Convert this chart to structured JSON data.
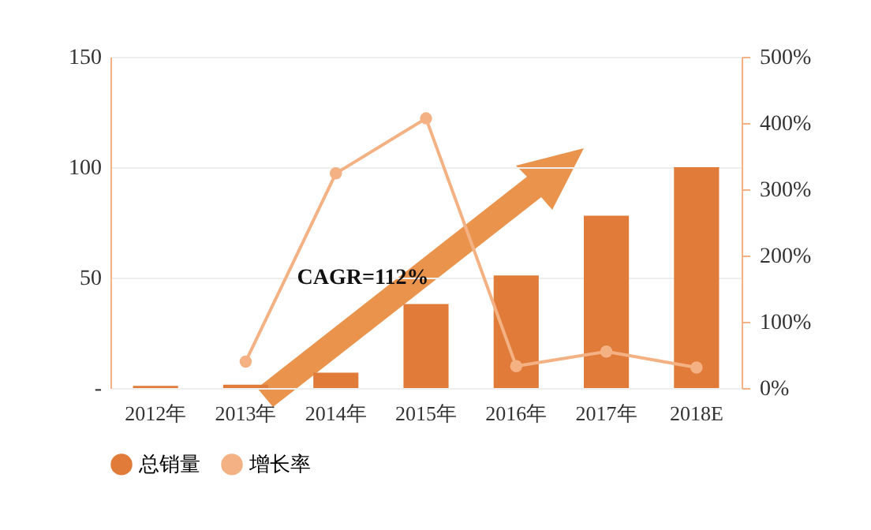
{
  "chart_data": {
    "type": "bar",
    "categories": [
      "2012年",
      "2013年",
      "2014年",
      "2015年",
      "2016年",
      "2017年",
      "2018E"
    ],
    "series": [
      {
        "name": "总销量",
        "color": "#e07b39",
        "values": [
          1,
          1.5,
          7,
          38,
          51,
          78,
          100
        ]
      },
      {
        "name": "增长率",
        "type": "line",
        "axis": "y2",
        "color": "#f4b183",
        "values": [
          null,
          40,
          324,
          407,
          33,
          55,
          31
        ]
      }
    ],
    "ylim": [
      0,
      150
    ],
    "yticks": [
      {
        "value": 0,
        "label": "-"
      },
      50,
      100,
      150
    ],
    "y2lim": [
      0,
      500
    ],
    "y2ticks": [
      {
        "value": 0,
        "label": "0%"
      },
      {
        "value": 100,
        "label": "100%"
      },
      {
        "value": 200,
        "label": "200%"
      },
      {
        "value": 300,
        "label": "300%"
      },
      {
        "value": 400,
        "label": "400%"
      },
      {
        "value": 500,
        "label": "500%"
      }
    ],
    "annotations": [
      "CAGR=112%"
    ],
    "grid": "y",
    "legend": "bottom",
    "marker": "circle"
  }
}
